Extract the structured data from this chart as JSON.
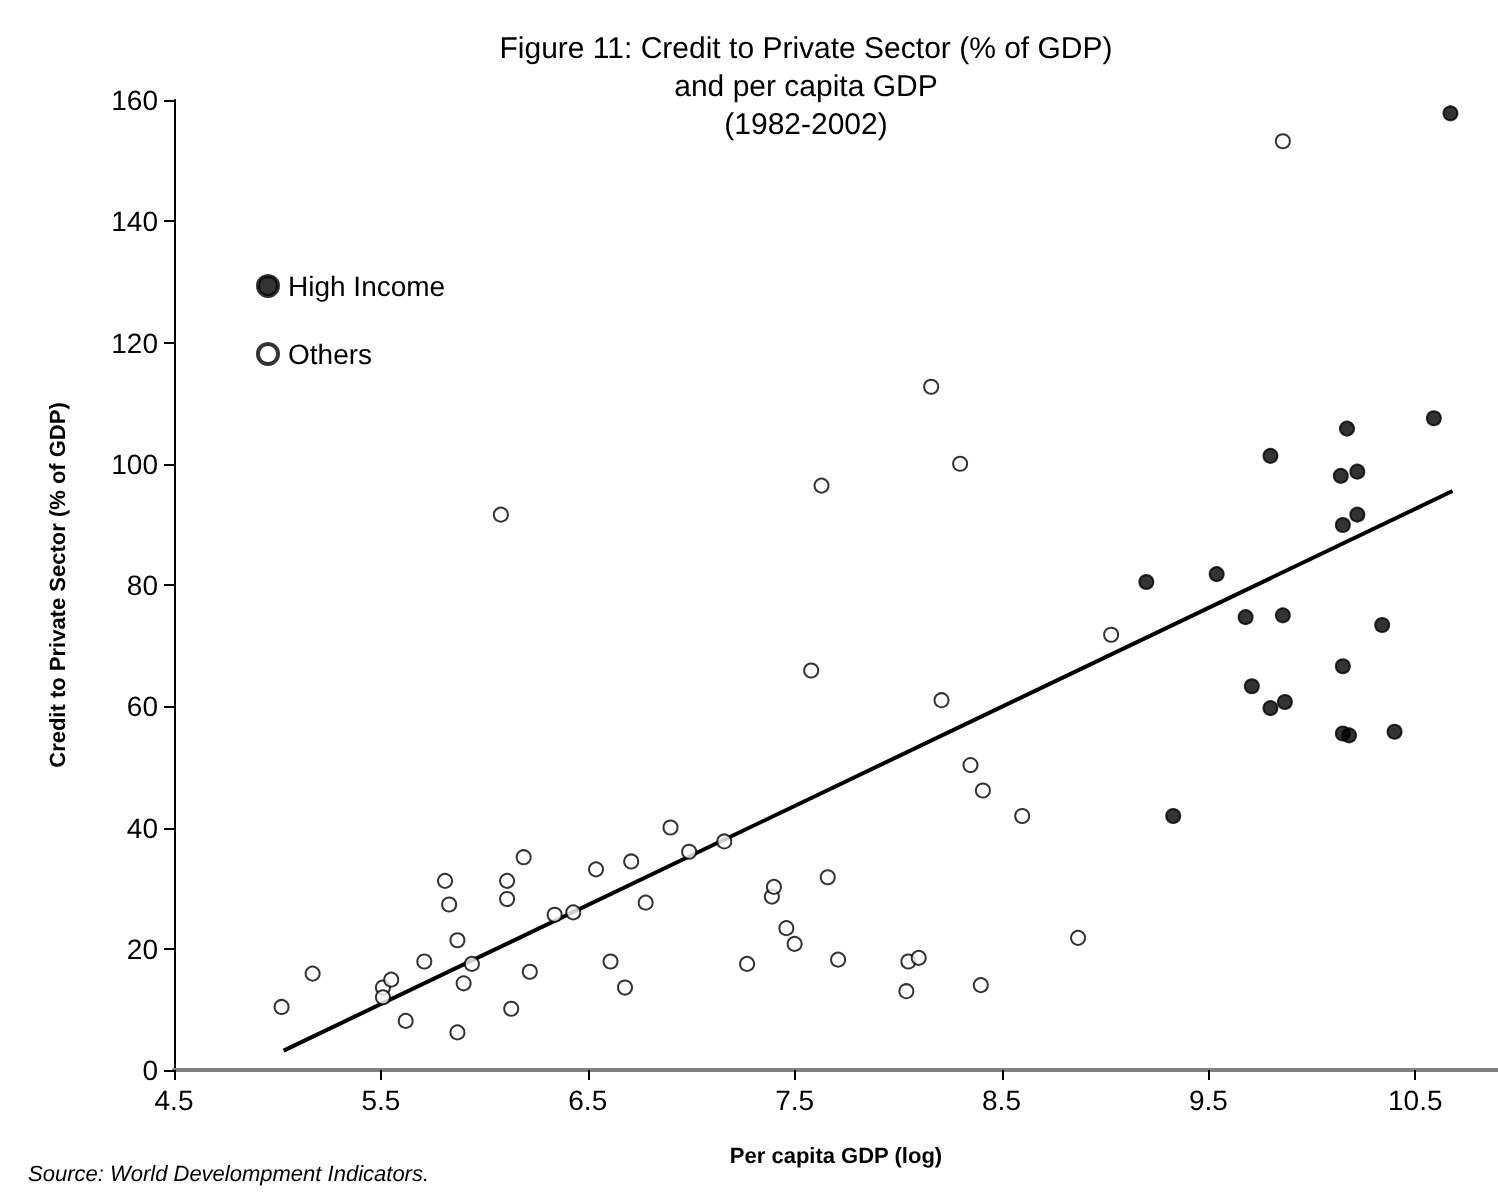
{
  "chart_data": {
    "type": "scatter",
    "title": "Figure 11: Credit to Private Sector (% of GDP)\nand per capita GDP\n(1982-2002)",
    "xlabel": "Per capita GDP (log)",
    "ylabel": "Credit to Private Sector (% of GDP)",
    "annotations": [
      "Source: World Develompment Indicators."
    ],
    "xlim": [
      4.5,
      10.9
    ],
    "xticks": [
      4.5,
      5.5,
      6.5,
      7.5,
      8.5,
      9.5,
      10.5
    ],
    "ylim": [
      0,
      160
    ],
    "yticks": [
      0,
      20,
      40,
      60,
      80,
      100,
      120,
      140,
      160
    ],
    "grid": false,
    "legend": "top left",
    "marker": "circle",
    "series": [
      {
        "name": "High Income",
        "color": "#000000",
        "x": [
          10.67,
          10.59,
          10.17,
          9.8,
          10.14,
          10.22,
          10.22,
          10.15,
          9.2,
          9.54,
          9.68,
          9.86,
          10.34,
          10.15,
          9.71,
          9.8,
          9.87,
          10.15,
          10.18,
          10.4,
          9.33
        ],
        "values": [
          157.8,
          107.5,
          105.8,
          101.3,
          98,
          98.7,
          91.6,
          89.9,
          80.5,
          81.8,
          74.7,
          75,
          73.4,
          66.6,
          63.3,
          59.7,
          60.7,
          55.5,
          55.2,
          55.8,
          41.9
        ]
      },
      {
        "name": "Others",
        "color": "#ffffff",
        "x": [
          5.02,
          5.17,
          5.51,
          5.51,
          5.55,
          5.62,
          5.71,
          5.81,
          5.83,
          5.87,
          5.87,
          5.9,
          5.94,
          6.11,
          6.11,
          6.13,
          6.19,
          6.22,
          6.34,
          6.43,
          6.54,
          6.61,
          6.68,
          6.71,
          6.78,
          6.9,
          6.99,
          7.16,
          7.27,
          6.08,
          7.39,
          7.4,
          7.46,
          7.5,
          7.58,
          7.66,
          7.71,
          8.04,
          8.05,
          8.1,
          8.21,
          8.35,
          8.4,
          8.41,
          8.6,
          8.87,
          9.03,
          9.86,
          8.16,
          8.3,
          7.63
        ],
        "values": [
          10.4,
          15.9,
          13.6,
          12,
          14.9,
          8.1,
          17.9,
          31.2,
          27.3,
          21.4,
          6.2,
          14.3,
          17.5,
          31.2,
          28.2,
          10.1,
          35.1,
          16.2,
          25.6,
          26,
          33.1,
          17.9,
          13.6,
          34.4,
          27.6,
          40,
          36,
          37.7,
          17.5,
          91.6,
          28.6,
          30.2,
          23.4,
          20.8,
          65.9,
          31.8,
          18.2,
          13,
          17.9,
          18.5,
          61,
          50.3,
          14,
          46.1,
          41.9,
          21.8,
          71.8,
          153.2,
          112.7,
          100,
          96.4
        ]
      },
      {
        "type": "line",
        "marker": "none",
        "color": "#000000",
        "x": [
          5.03,
          10.68
        ],
        "values": [
          3.2,
          95.5
        ]
      }
    ]
  }
}
